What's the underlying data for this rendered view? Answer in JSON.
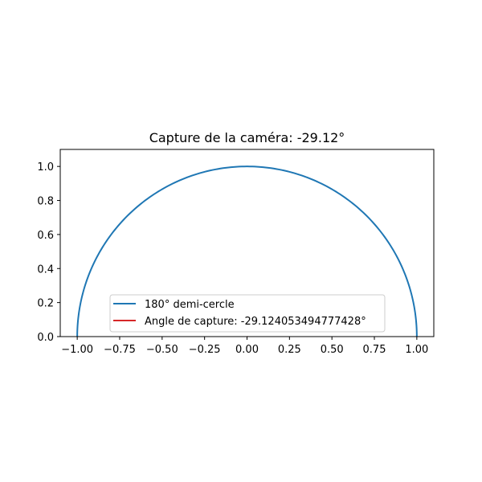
{
  "chart_data": {
    "type": "line",
    "title": "Capture de la caméra: -29.12°",
    "xlabel": "",
    "ylabel": "",
    "xlim": [
      -1.1,
      1.1
    ],
    "ylim": [
      0.0,
      1.1
    ],
    "grid": false,
    "legend_position": "lower center",
    "x_ticks": [
      -1.0,
      -0.75,
      -0.5,
      -0.25,
      0.0,
      0.25,
      0.5,
      0.75,
      1.0
    ],
    "x_tick_labels": [
      "−1.00",
      "−0.75",
      "−0.50",
      "−0.25",
      "0.00",
      "0.25",
      "0.50",
      "0.75",
      "1.00"
    ],
    "y_ticks": [
      0.0,
      0.2,
      0.4,
      0.6,
      0.8,
      1.0
    ],
    "y_tick_labels": [
      "0.0",
      "0.2",
      "0.4",
      "0.6",
      "0.8",
      "1.0"
    ],
    "series": [
      {
        "name": "180° demi-cercle",
        "kind": "semicircle",
        "radius": 1.0,
        "angle_range_deg": [
          0,
          180
        ],
        "color": "#1f77b4"
      },
      {
        "name": "Angle de capture: -29.124053494777428°",
        "kind": "ray",
        "angle_deg": -29.124053494777428,
        "color": "#d62728"
      }
    ]
  }
}
